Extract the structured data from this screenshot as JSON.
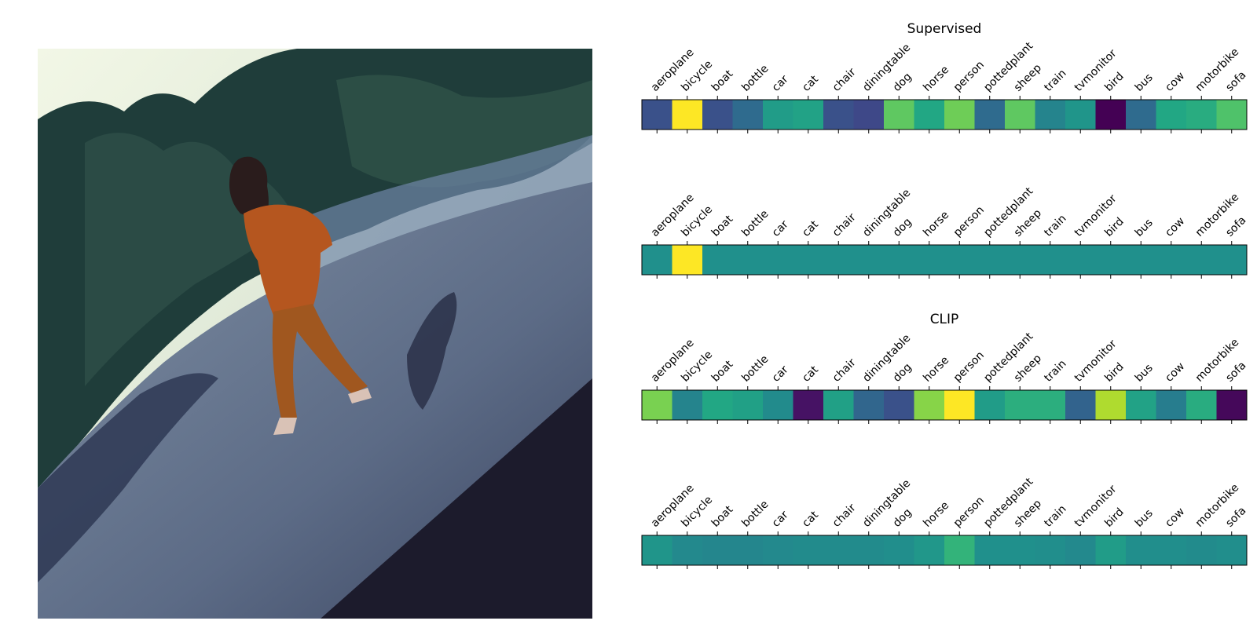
{
  "photo": {
    "description_icon": "photo-woman-walking-field-icon"
  },
  "categories": [
    "aeroplane",
    "bicycle",
    "boat",
    "bottle",
    "car",
    "cat",
    "chair",
    "diningtable",
    "dog",
    "horse",
    "person",
    "pottedplant",
    "sheep",
    "train",
    "tvmonitor",
    "bird",
    "bus",
    "cow",
    "motorbike",
    "sofa"
  ],
  "chart_data": [
    {
      "type": "heatmap",
      "title": "Supervised",
      "colormap": "viridis",
      "categories": [
        "aeroplane",
        "bicycle",
        "boat",
        "bottle",
        "car",
        "cat",
        "chair",
        "diningtable",
        "dog",
        "horse",
        "person",
        "pottedplant",
        "sheep",
        "train",
        "tvmonitor",
        "bird",
        "bus",
        "cow",
        "motorbike",
        "sofa"
      ],
      "values": [
        0.25,
        1.0,
        0.25,
        0.35,
        0.55,
        0.58,
        0.25,
        0.22,
        0.75,
        0.6,
        0.78,
        0.35,
        0.75,
        0.45,
        0.52,
        0.0,
        0.35,
        0.6,
        0.62,
        0.72
      ]
    },
    {
      "type": "heatmap",
      "title": "",
      "colormap": "viridis",
      "categories": [
        "aeroplane",
        "bicycle",
        "boat",
        "bottle",
        "car",
        "cat",
        "chair",
        "diningtable",
        "dog",
        "horse",
        "person",
        "pottedplant",
        "sheep",
        "train",
        "tvmonitor",
        "bird",
        "bus",
        "cow",
        "motorbike",
        "sofa"
      ],
      "values": [
        0.5,
        1.0,
        0.5,
        0.5,
        0.5,
        0.5,
        0.5,
        0.5,
        0.5,
        0.5,
        0.5,
        0.5,
        0.5,
        0.5,
        0.5,
        0.5,
        0.5,
        0.5,
        0.5,
        0.5
      ]
    },
    {
      "type": "heatmap",
      "title": "CLIP",
      "colormap": "viridis",
      "categories": [
        "aeroplane",
        "bicycle",
        "boat",
        "bottle",
        "car",
        "cat",
        "chair",
        "diningtable",
        "dog",
        "horse",
        "person",
        "pottedplant",
        "sheep",
        "train",
        "tvmonitor",
        "bird",
        "bus",
        "cow",
        "motorbike",
        "sofa"
      ],
      "values": [
        0.8,
        0.45,
        0.6,
        0.57,
        0.48,
        0.05,
        0.57,
        0.33,
        0.25,
        0.82,
        1.0,
        0.55,
        0.63,
        0.63,
        0.32,
        0.88,
        0.58,
        0.42,
        0.62,
        0.02
      ]
    },
    {
      "type": "heatmap",
      "title": "",
      "colormap": "viridis",
      "categories": [
        "aeroplane",
        "bicycle",
        "boat",
        "bottle",
        "car",
        "cat",
        "chair",
        "diningtable",
        "dog",
        "horse",
        "person",
        "pottedplant",
        "sheep",
        "train",
        "tvmonitor",
        "bird",
        "bus",
        "cow",
        "motorbike",
        "sofa"
      ],
      "values": [
        0.52,
        0.47,
        0.46,
        0.46,
        0.47,
        0.48,
        0.48,
        0.48,
        0.49,
        0.53,
        0.65,
        0.5,
        0.5,
        0.49,
        0.47,
        0.55,
        0.49,
        0.49,
        0.48,
        0.49
      ]
    }
  ]
}
